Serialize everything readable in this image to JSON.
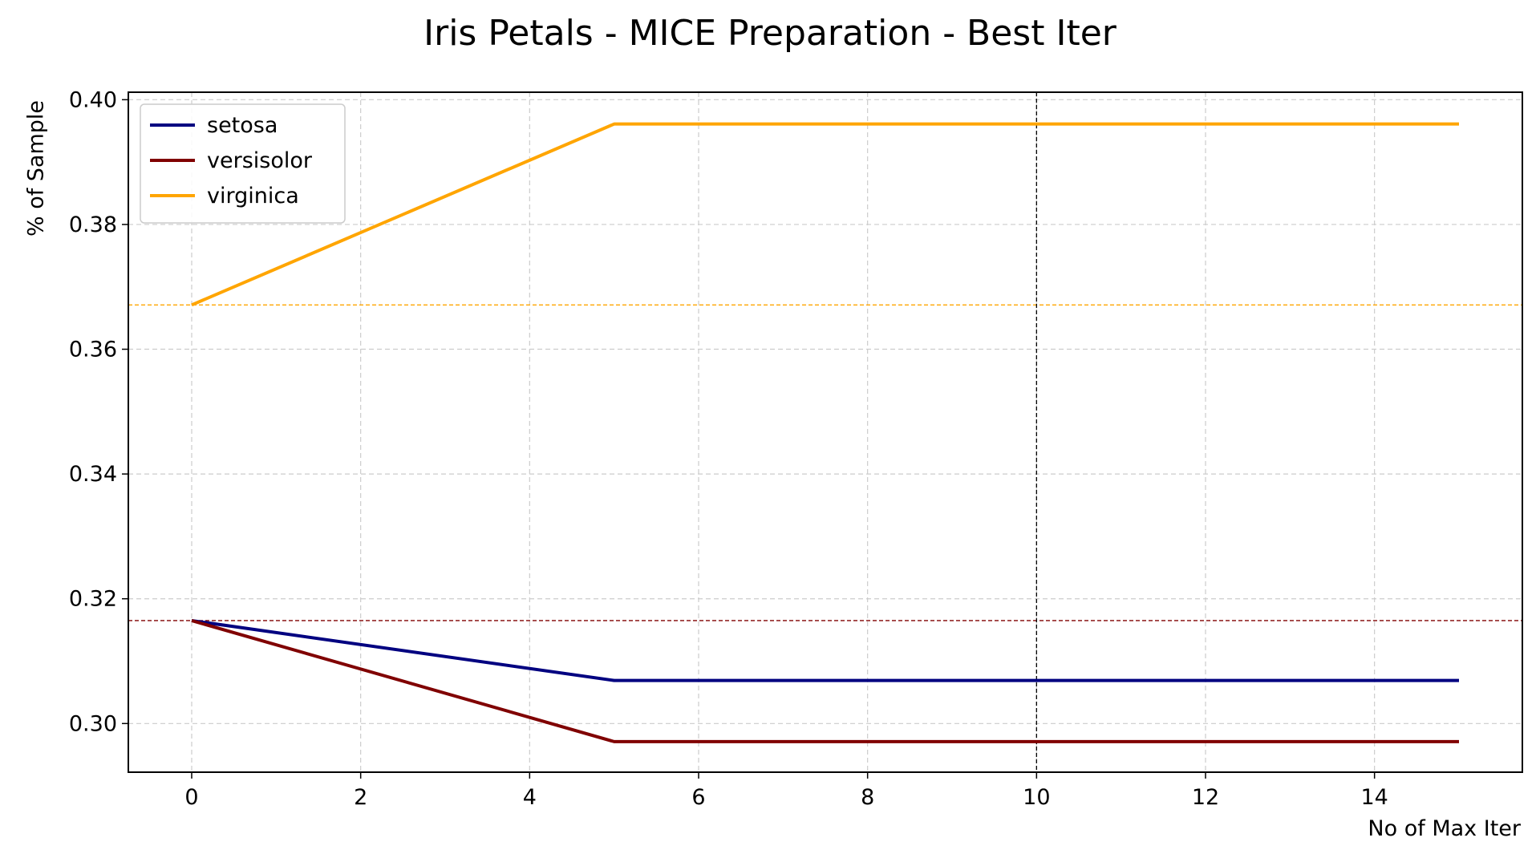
{
  "chart_data": {
    "type": "line",
    "title": "Iris Petals - MICE Preparation - Best Iter",
    "xlabel": "No of Max Iter",
    "ylabel": "% of Sample",
    "xlim": [
      -0.75,
      15.75
    ],
    "ylim": [
      0.2922,
      0.4012
    ],
    "x_ticks": [
      0,
      2,
      4,
      6,
      8,
      10,
      12,
      14
    ],
    "y_ticks": [
      0.3,
      0.32,
      0.34,
      0.36,
      0.38,
      0.4
    ],
    "y_tick_labels": [
      "0.30",
      "0.32",
      "0.34",
      "0.36",
      "0.38",
      "0.40"
    ],
    "grid": true,
    "legend_position": "top-left",
    "x": [
      0,
      5,
      10,
      15
    ],
    "series": [
      {
        "name": "setosa",
        "color": "#000080",
        "values": [
          0.3165,
          0.3069,
          0.3069,
          0.3069
        ]
      },
      {
        "name": "versisolor",
        "color": "#800000",
        "values": [
          0.3165,
          0.2971,
          0.2971,
          0.2971
        ]
      },
      {
        "name": "virginica",
        "color": "#FFA500",
        "values": [
          0.3671,
          0.3961,
          0.3961,
          0.3961
        ]
      }
    ],
    "reference_lines": [
      {
        "orientation": "horizontal",
        "value": 0.3671,
        "color": "#FFA500",
        "style": "dashed"
      },
      {
        "orientation": "horizontal",
        "value": 0.3165,
        "color": "#800000",
        "style": "dashed"
      },
      {
        "orientation": "vertical",
        "value": 10,
        "color": "#000000",
        "style": "dashed"
      }
    ]
  }
}
